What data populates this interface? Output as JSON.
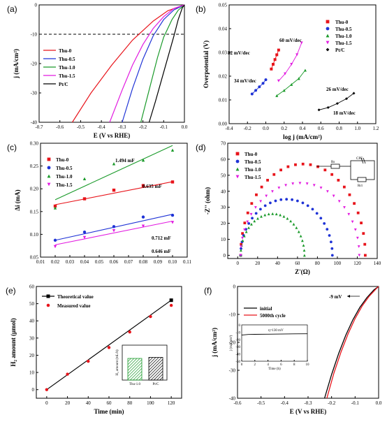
{
  "colors": {
    "thu0": "#e8141b",
    "thu05": "#1f33d6",
    "thu10": "#1a9a2a",
    "thu15": "#e21be0",
    "ptc": "#000000"
  },
  "chart_data": [
    {
      "panel": "(a)",
      "type": "line",
      "xlabel": "E (V vs RHE)",
      "ylabel": "j (mA/cm²)",
      "xlim": [
        -0.7,
        0.0
      ],
      "ylim": [
        -40,
        0
      ],
      "xticks": [
        "-0.7",
        "-0.6",
        "-0.5",
        "-0.4",
        "-0.3",
        "-0.2",
        "-0.1",
        "0.0"
      ],
      "yticks": [
        "0",
        "-10",
        "-20",
        "-30",
        "-40"
      ],
      "reference_line": {
        "y": -10,
        "style": "dashed"
      },
      "legend_position": "left",
      "series": [
        {
          "name": "Thu-0",
          "color": "#e8141b",
          "x": [
            -0.54,
            -0.45,
            -0.35,
            -0.25,
            -0.15,
            -0.08,
            0.0
          ],
          "y": [
            -40,
            -30,
            -20.5,
            -12,
            -5.5,
            -2,
            0
          ]
        },
        {
          "name": "Thu-0.5",
          "color": "#1f33d6",
          "x": [
            -0.3,
            -0.25,
            -0.2,
            -0.15,
            -0.1,
            -0.05,
            0.0
          ],
          "y": [
            -40,
            -28.5,
            -18.5,
            -10.5,
            -5,
            -1.7,
            0
          ]
        },
        {
          "name": "Thu-1.0",
          "color": "#1a9a2a",
          "x": [
            -0.21,
            -0.17,
            -0.13,
            -0.1,
            -0.06,
            -0.03,
            0.0
          ],
          "y": [
            -40,
            -29,
            -18,
            -11,
            -5,
            -1.8,
            0
          ]
        },
        {
          "name": "Thu-1.5",
          "color": "#e21be0",
          "x": [
            -0.36,
            -0.3,
            -0.25,
            -0.2,
            -0.15,
            -0.1,
            -0.05,
            0.0
          ],
          "y": [
            -40,
            -29,
            -20.5,
            -13.5,
            -8,
            -4,
            -1.2,
            0
          ]
        },
        {
          "name": "Pt/C",
          "color": "#000000",
          "x": [
            -0.17,
            -0.14,
            -0.11,
            -0.08,
            -0.05,
            -0.03,
            -0.01,
            0.0
          ],
          "y": [
            -40,
            -33,
            -25.5,
            -18,
            -10.5,
            -5,
            -1,
            0
          ]
        }
      ]
    },
    {
      "panel": "(b)",
      "type": "scatter",
      "xlabel": "log j (mA/cm²)",
      "ylabel": "Overpotential (V)",
      "xlim": [
        -0.4,
        1.2
      ],
      "ylim": [
        0.0,
        0.05
      ],
      "xticks": [
        "-0.4",
        "-0.2",
        "0.0",
        "0.2",
        "0.4",
        "0.6",
        "0.8",
        "1.0",
        "1.2"
      ],
      "yticks": [
        "0.00",
        "0.01",
        "0.02",
        "0.03",
        "0.04",
        "0.05"
      ],
      "legend_position": "top-right",
      "series": [
        {
          "name": "Thu-0",
          "color": "#e8141b",
          "marker": "square",
          "x": [
            0.06,
            0.08,
            0.1,
            0.12,
            0.14
          ],
          "y": [
            0.023,
            0.025,
            0.027,
            0.029,
            0.031
          ],
          "annotation": "82 mV/dec"
        },
        {
          "name": "Thu-0.5",
          "color": "#1f33d6",
          "marker": "circle",
          "x": [
            -0.15,
            -0.11,
            -0.07,
            -0.03,
            0.0
          ],
          "y": [
            0.0125,
            0.014,
            0.0155,
            0.017,
            0.0185
          ],
          "annotation": "34 mV/dec"
        },
        {
          "name": "Thu-1.0",
          "color": "#1a9a2a",
          "marker": "triangle-up",
          "x": [
            0.12,
            0.2,
            0.28,
            0.36,
            0.43
          ],
          "y": [
            0.0118,
            0.014,
            0.0165,
            0.019,
            0.0225
          ],
          "annotation": "26 mV/dec"
        },
        {
          "name": "Thu-1.5",
          "color": "#e21be0",
          "marker": "triangle-down",
          "x": [
            0.14,
            0.21,
            0.28,
            0.34,
            0.39
          ],
          "y": [
            0.018,
            0.021,
            0.025,
            0.029,
            0.034
          ],
          "annotation": "60 mV/dec"
        },
        {
          "name": "Pt/C",
          "color": "#000000",
          "marker": "diamond",
          "x": [
            0.58,
            0.68,
            0.78,
            0.88,
            0.96
          ],
          "y": [
            0.0058,
            0.0068,
            0.0085,
            0.0105,
            0.0128
          ],
          "annotation": "18 mV/dec"
        }
      ]
    },
    {
      "panel": "(c)",
      "type": "scatter",
      "xlabel": "",
      "ylabel": "Δi (mA)",
      "xlim": [
        0.01,
        0.11
      ],
      "ylim": [
        0.05,
        0.3
      ],
      "xticks": [
        "0.01",
        "0.02",
        "0.03",
        "0.04",
        "0.05",
        "0.06",
        "0.07",
        "0.08",
        "0.09",
        "0.10",
        "0.11"
      ],
      "yticks": [
        "0.05",
        "0.10",
        "0.15",
        "0.20",
        "0.25",
        "0.30"
      ],
      "legend_position": "top-left",
      "series": [
        {
          "name": "Thu-0",
          "color": "#e8141b",
          "marker": "square",
          "x": [
            0.02,
            0.04,
            0.06,
            0.08,
            0.1
          ],
          "y": [
            0.162,
            0.178,
            0.197,
            0.207,
            0.215
          ],
          "fit": [
            0.165,
            0.2155
          ],
          "annotation": "0.635 mF"
        },
        {
          "name": "Thu-0.5",
          "color": "#1f33d6",
          "marker": "circle",
          "x": [
            0.02,
            0.04,
            0.06,
            0.08,
            0.1
          ],
          "y": [
            0.087,
            0.105,
            0.117,
            0.138,
            0.142
          ],
          "fit": [
            0.087,
            0.144
          ],
          "annotation": "0.712 mF"
        },
        {
          "name": "Thu-1.0",
          "color": "#1a9a2a",
          "marker": "triangle-up",
          "x": [
            0.02,
            0.04,
            0.06,
            0.08,
            0.1
          ],
          "y": [
            0.158,
            0.222,
            0.255,
            0.263,
            0.285
          ],
          "fit": [
            0.176,
            0.295
          ],
          "annotation": "1.494 mF"
        },
        {
          "name": "Thu-1.5",
          "color": "#e21be0",
          "marker": "triangle-down",
          "x": [
            0.02,
            0.04,
            0.06,
            0.08,
            0.1
          ],
          "y": [
            0.073,
            0.093,
            0.108,
            0.118,
            0.126
          ],
          "fit": [
            0.077,
            0.129
          ],
          "annotation": "0.646 mF"
        }
      ]
    },
    {
      "panel": "(d)",
      "type": "scatter",
      "xlabel": "Z'(Ω)",
      "ylabel": "-Z'' (ohm)",
      "xlim": [
        -10,
        140
      ],
      "ylim": [
        -2,
        70
      ],
      "xticks": [
        "0",
        "20",
        "40",
        "60",
        "80",
        "100",
        "120",
        "140"
      ],
      "yticks": [
        "0",
        "10",
        "20",
        "30",
        "40",
        "50",
        "60",
        "70"
      ],
      "legend_position": "top-left",
      "inset_labels": {
        "rs": "Rs",
        "cpe": "CPE",
        "rct": "Rct"
      },
      "series": [
        {
          "name": "Thu-0",
          "color": "#e8141b",
          "marker": "square",
          "arc_start": 3,
          "arc_end": 128,
          "peak": 57
        },
        {
          "name": "Thu-0.5",
          "color": "#1f33d6",
          "marker": "circle",
          "arc_start": 3,
          "arc_end": 95,
          "peak": 35
        },
        {
          "name": "Thu-1.0",
          "color": "#1a9a2a",
          "marker": "triangle-up",
          "arc_start": 3,
          "arc_end": 67,
          "peak": 26
        },
        {
          "name": "Thu-1.5",
          "color": "#e21be0",
          "marker": "triangle-down",
          "arc_start": 3,
          "arc_end": 122,
          "peak": 45
        }
      ]
    },
    {
      "panel": "(e)",
      "type": "line",
      "xlabel": "Time (min)",
      "ylabel": "H₂ amount (μmol)",
      "xlim": [
        -10,
        130
      ],
      "ylim": [
        -5,
        60
      ],
      "xticks": [
        "0",
        "20",
        "40",
        "60",
        "80",
        "100",
        "120"
      ],
      "yticks": [
        "0",
        "10",
        "20",
        "30",
        "40",
        "50",
        "60"
      ],
      "legend_position": "top-left",
      "series": [
        {
          "name": "Theoretical value",
          "color": "#000000",
          "x": [
            0,
            120
          ],
          "y": [
            0,
            52
          ]
        },
        {
          "name": "Measured value",
          "color": "#e8141b",
          "x": [
            0,
            20,
            40,
            60,
            80,
            100,
            120
          ],
          "y": [
            0,
            9,
            16.5,
            24.5,
            33.5,
            42.5,
            49
          ]
        }
      ],
      "inset": {
        "type": "bar",
        "ylabel": "H₂ amount (mL/h)",
        "categories": [
          "Thu-1.0",
          "Pt/C"
        ],
        "values": [
          0.62,
          0.65
        ]
      }
    },
    {
      "panel": "(f)",
      "type": "line",
      "xlabel": "E (V vs RHE)",
      "ylabel": "j (mA/cm²)",
      "xlim": [
        -0.6,
        0.0
      ],
      "ylim": [
        -40,
        0
      ],
      "xticks": [
        "-0.6",
        "-0.5",
        "-0.4",
        "-0.3",
        "-0.2",
        "-0.1",
        "0.0"
      ],
      "yticks": [
        "0",
        "-10",
        "-20",
        "-30",
        "-40"
      ],
      "legend_position": "top-left",
      "annotation": "-9 mV",
      "series": [
        {
          "name": "initial",
          "color": "#000000",
          "x": [
            -0.23,
            -0.2,
            -0.17,
            -0.14,
            -0.11,
            -0.08,
            -0.05,
            -0.02,
            0.0
          ],
          "y": [
            -40,
            -31.5,
            -24,
            -17.5,
            -12,
            -7.5,
            -4,
            -1.2,
            0
          ]
        },
        {
          "name": "5000th cycle",
          "color": "#e8141b",
          "x": [
            -0.22,
            -0.19,
            -0.16,
            -0.13,
            -0.1,
            -0.07,
            -0.04,
            -0.01,
            0.0
          ],
          "y": [
            -40,
            -31,
            -23.5,
            -17,
            -11.5,
            -7,
            -3.5,
            -0.8,
            0
          ]
        }
      ],
      "inset": {
        "type": "line",
        "xlabel": "Time (h)",
        "ylabel": "j (mA/cm²)",
        "annotation": "η=130 mV",
        "xticks": [
          "0",
          "2",
          "4",
          "6",
          "8",
          "10"
        ],
        "yticks": [
          "0",
          "-10",
          "-20",
          "-30",
          "-40",
          "-50"
        ],
        "x": [
          0,
          1,
          2,
          4,
          6,
          8,
          10
        ],
        "y": [
          -14,
          -13.2,
          -13,
          -12.8,
          -12.6,
          -12.3,
          -12.2
        ]
      }
    }
  ]
}
